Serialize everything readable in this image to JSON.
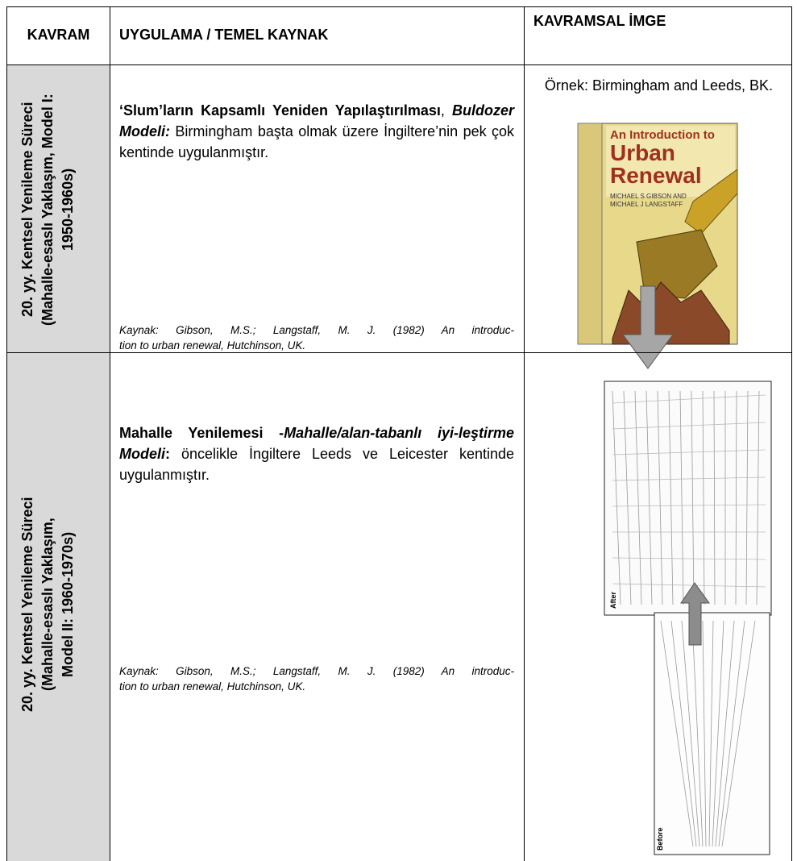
{
  "header": {
    "columns": [
      "KAVRAM",
      "UYGULAMA / TEMEL KAYNAK",
      "KAVRAMSAL İMGE"
    ]
  },
  "rows": [
    {
      "concept": [
        "20. yy. Kentsel Yenileme Süreci",
        "(Mahalle-esaslı Yaklaşım,  Model I:",
        "1950-1960s)"
      ],
      "application": [
        {
          "text": "‘Slum’ların Kapsamlı Yeniden Yapılaştırılması",
          "style": "bold"
        },
        {
          "text": ", ",
          "style": "normal"
        },
        {
          "text": "Buldozer Modeli:",
          "style": "bold-italic"
        },
        {
          "text": " Birmingham başta olmak üzere İngiltere’nin pek çok kentinde uygulanmıştır.",
          "style": "normal"
        }
      ],
      "source": [
        "Kaynak: Gibson, M.S.; Langstaff,  M. J.  (1982) An introduc-",
        "tion to urban renewal, Hutchinson, UK."
      ],
      "image_caption": "Örnek: Birmingham and Leeds, BK.",
      "image_texts": [
        "An Introduction to",
        "Urban",
        "Renewal",
        "MICHAEL S GIBSON AND",
        "MICHAEL J LANGSTAFF"
      ]
    },
    {
      "concept": [
        "20. yy. Kentsel Yenileme Süreci",
        "(Mahalle-esaslı Yaklaşım,",
        "Model II: 1960-1970s)"
      ],
      "application": [
        {
          "text": "Mahalle Yenilemesi -",
          "style": "bold"
        },
        {
          "text": "Mahalle/alan-tabanlı iyi-leştirme Modeli",
          "style": "bold-italic"
        },
        {
          "text": ":",
          "style": "bold"
        },
        {
          "text": " öncelikle İngiltere Leeds ve Leicester kentinde uygulanmıştır.",
          "style": "normal"
        }
      ],
      "source": [
        "Kaynak: Gibson, M.S.; Langstaff,  M. J.  (1982) An introduc-",
        "tion to urban renewal, Hutchinson, UK."
      ],
      "image_texts": [
        "After",
        "Before"
      ]
    }
  ]
}
